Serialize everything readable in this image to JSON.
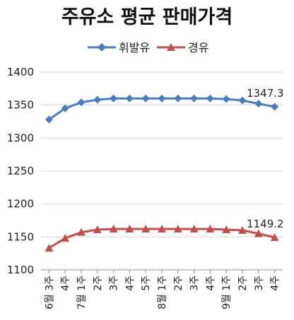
{
  "chart_data": {
    "type": "line",
    "title": "주유소 평균 판매가격",
    "categories": [
      "6월 3주",
      "4주",
      "7월 1주",
      "2주",
      "3주",
      "4주",
      "5주",
      "8월 1주",
      "2주",
      "3주",
      "4주",
      "9월 1주",
      "2주",
      "3주",
      "4주"
    ],
    "ylim": [
      1100,
      1400
    ],
    "yticks": [
      1100,
      1150,
      1200,
      1250,
      1300,
      1350,
      1400
    ],
    "grid": true,
    "legend_position": "top",
    "series": [
      {
        "name": "휘발유",
        "color": "#4a7dbf",
        "marker": "diamond",
        "values": [
          1328,
          1345,
          1354,
          1358,
          1360,
          1360,
          1360,
          1360,
          1360,
          1360,
          1360,
          1359,
          1357,
          1352,
          1347.3
        ],
        "end_label": "1347.3"
      },
      {
        "name": "경유",
        "color": "#c0504d",
        "marker": "triangle",
        "values": [
          1133,
          1148,
          1157,
          1161,
          1162,
          1162,
          1162,
          1162,
          1162,
          1162,
          1162,
          1161,
          1160,
          1155,
          1149.2
        ],
        "end_label": "1149.2"
      }
    ]
  }
}
